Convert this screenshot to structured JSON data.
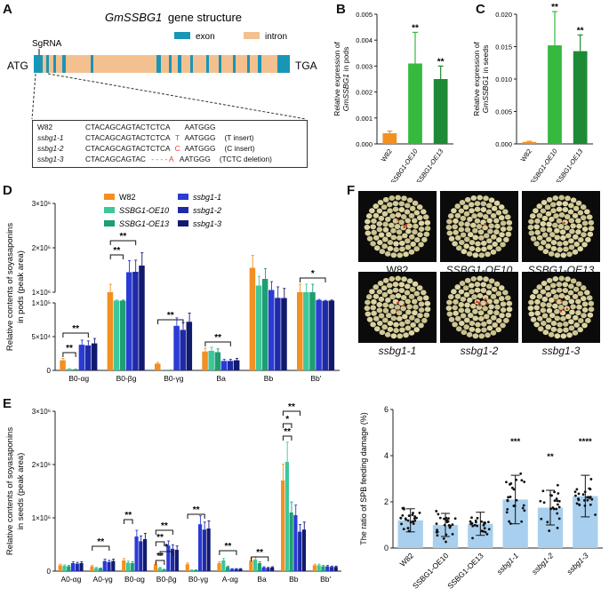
{
  "panels": [
    "A",
    "B",
    "C",
    "D",
    "E",
    "F"
  ],
  "gene": {
    "title_gene": "GmSSBG1",
    "title_suffix": "gene structure",
    "sgrna": "SgRNA",
    "start": "ATG",
    "end": "TGA",
    "legend": [
      {
        "label": "exon",
        "color": "#1996b5"
      },
      {
        "label": "intron",
        "color": "#f5c08f"
      }
    ],
    "rows": [
      {
        "name": "W82",
        "seq_a": "CTACAGCAGTACTCTCA",
        "ins": "",
        "seq_b": "AATGGG",
        "note": ""
      },
      {
        "name": "ssbg1-1",
        "seq_a": "CTACAGCAGTACTCTCA",
        "ins": "T",
        "seq_b": "AATGGG",
        "note": "(T insert)"
      },
      {
        "name": "ssbg1-2",
        "seq_a": "CTACAGCAGTACTCTCA",
        "ins": "C",
        "seq_b": "AATGGG",
        "note": "(C insert)"
      },
      {
        "name": "ssbg1-3",
        "seq_a": "CTACAGCAGTAC",
        "ins": "- - - - A",
        "seq_b": "AATGGG",
        "note": "(TCTC deletion)"
      }
    ]
  },
  "chart_data": [
    {
      "id": "B",
      "type": "bar",
      "title": "",
      "ylabel_line1": "Relative expression of",
      "ylabel_gene": "GmSSBG1",
      "ylabel_suffix": "in pods",
      "categories": [
        "W82",
        "SSBG1-OE10",
        "SSBG1-OE13"
      ],
      "values": [
        0.00041,
        0.0031,
        0.0025
      ],
      "errors": [
        8e-05,
        0.0012,
        0.0005
      ],
      "significance": [
        "",
        "**",
        "**"
      ],
      "colors": [
        "#f39021",
        "#36b93f",
        "#1f8a35"
      ],
      "ylim": [
        0,
        0.005
      ],
      "yticks": [
        0,
        0.001,
        0.002,
        0.003,
        0.004,
        0.005
      ],
      "yticklabels": [
        "0.000",
        "0.001",
        "0.002",
        "0.003",
        "0.004",
        "0.005"
      ]
    },
    {
      "id": "C",
      "type": "bar",
      "title": "",
      "ylabel_line1": "Relative expression of",
      "ylabel_gene": "GmSSBG1",
      "ylabel_suffix": "in seeds",
      "categories": [
        "W82",
        "SSBG1-OE10",
        "SSBG1-OE13"
      ],
      "values": [
        0.0003,
        0.0152,
        0.0143
      ],
      "errors": [
        0.0001,
        0.0052,
        0.0025
      ],
      "significance": [
        "",
        "**",
        "**"
      ],
      "colors": [
        "#f39021",
        "#36b93f",
        "#1f8a35"
      ],
      "ylim": [
        0,
        0.02
      ],
      "yticks": [
        0,
        0.005,
        0.01,
        0.015,
        0.02
      ],
      "yticklabels": [
        "0.000",
        "0.005",
        "0.010",
        "0.015",
        "0.020"
      ]
    },
    {
      "id": "D",
      "type": "bar",
      "ylabel_line1": "Relative contents of soyasaponins",
      "ylabel_line2": "in pods (peak area)",
      "categories": [
        "B0-αg",
        "B0-βg",
        "B0-γg",
        "Ba",
        "Bb",
        "Bb'"
      ],
      "series": [
        {
          "name": "W82",
          "color": "#f39021",
          "values": [
            15000,
            1000000,
            10000,
            28000,
            1550000,
            1000000
          ]
        },
        {
          "name": "SSBG1-OE10",
          "color": "#3dc79a",
          "values": [
            2000,
            500000,
            500,
            29000,
            1150000,
            1000000
          ]
        },
        {
          "name": "SSBG1-OE13",
          "color": "#1d9e73",
          "values": [
            1500,
            490000,
            400,
            27000,
            1300000,
            1000000
          ]
        },
        {
          "name": "ssbg1-1",
          "color": "#2a3bd6",
          "values": [
            38000,
            1450000,
            66000,
            14000,
            1050000,
            580000
          ]
        },
        {
          "name": "ssbg1-2",
          "color": "#1f2aa8",
          "values": [
            37000,
            1460000,
            60000,
            14000,
            950000,
            450000
          ]
        },
        {
          "name": "ssbg1-3",
          "color": "#121a6e",
          "values": [
            40000,
            1600000,
            72000,
            15000,
            920000,
            490000
          ]
        }
      ],
      "yticklabels_low": [
        "0",
        "5×10⁴",
        "1×10⁵"
      ],
      "yticklabels_high": [
        "1×10⁶",
        "2×10⁶",
        "3×10⁶"
      ],
      "significance": [
        "**",
        "**",
        "**",
        "**",
        "**",
        "**",
        "*"
      ]
    },
    {
      "id": "E",
      "type": "bar",
      "ylabel_line1": "Relative contents of soyasaponins",
      "ylabel_line2": "in seeds (peak area)",
      "categories": [
        "A0-αg",
        "A0-γg",
        "B0-αg",
        "B0-βg",
        "B0-γg",
        "A-αg",
        "Ba",
        "Bb",
        "Bb'"
      ],
      "series": [
        {
          "name": "W82",
          "color": "#f39021",
          "values": [
            110000,
            90000,
            200000,
            130000,
            130000,
            150000,
            200000,
            1700000,
            110000
          ]
        },
        {
          "name": "SSBG1-OE10",
          "color": "#3dc79a",
          "values": [
            100000,
            60000,
            160000,
            60000,
            20000,
            200000,
            220000,
            2050000,
            110000
          ]
        },
        {
          "name": "SSBG1-OE13",
          "color": "#1d9e73",
          "values": [
            90000,
            50000,
            150000,
            30000,
            20000,
            80000,
            150000,
            1100000,
            90000
          ]
        },
        {
          "name": "ssbg1-1",
          "color": "#2a3bd6",
          "values": [
            150000,
            190000,
            650000,
            480000,
            880000,
            40000,
            70000,
            1050000,
            90000
          ]
        },
        {
          "name": "ssbg1-2",
          "color": "#1f2aa8",
          "values": [
            140000,
            170000,
            560000,
            420000,
            780000,
            40000,
            60000,
            740000,
            80000
          ]
        },
        {
          "name": "ssbg1-3",
          "color": "#121a6e",
          "values": [
            150000,
            190000,
            600000,
            400000,
            800000,
            40000,
            70000,
            780000,
            80000
          ]
        }
      ],
      "ylim": [
        0,
        3000000
      ],
      "yticklabels": [
        "0",
        "1×10⁶",
        "2×10⁶",
        "3×10⁶"
      ],
      "significance": [
        "**",
        "**",
        "**",
        "**",
        "*",
        "**",
        "**",
        "**",
        "**",
        "**",
        "*",
        "**"
      ]
    },
    {
      "id": "F",
      "type": "bar",
      "ylabel": "The ratio of SPB feeding damage (%)",
      "categories": [
        "W82",
        "SSBG1-OE10",
        "SSBG1-OE13",
        "ssbg1-1",
        "ssbg1-2",
        "ssbg1-3"
      ],
      "values": [
        1.2,
        1.0,
        1.05,
        2.1,
        1.75,
        2.25
      ],
      "errors": [
        0.5,
        0.5,
        0.5,
        1.05,
        0.75,
        0.9
      ],
      "significance": [
        "",
        "",
        "",
        "***",
        "**",
        "****"
      ],
      "bar_color": "#a8cfee",
      "ylim": [
        0,
        6
      ],
      "yticklabels": [
        "0",
        "2",
        "4",
        "6"
      ]
    }
  ],
  "photos": {
    "labels": [
      "W82",
      "SSBG1-OE10",
      "SSBG1-OE13",
      "ssbg1-1",
      "ssbg1-2",
      "ssbg1-3"
    ]
  }
}
